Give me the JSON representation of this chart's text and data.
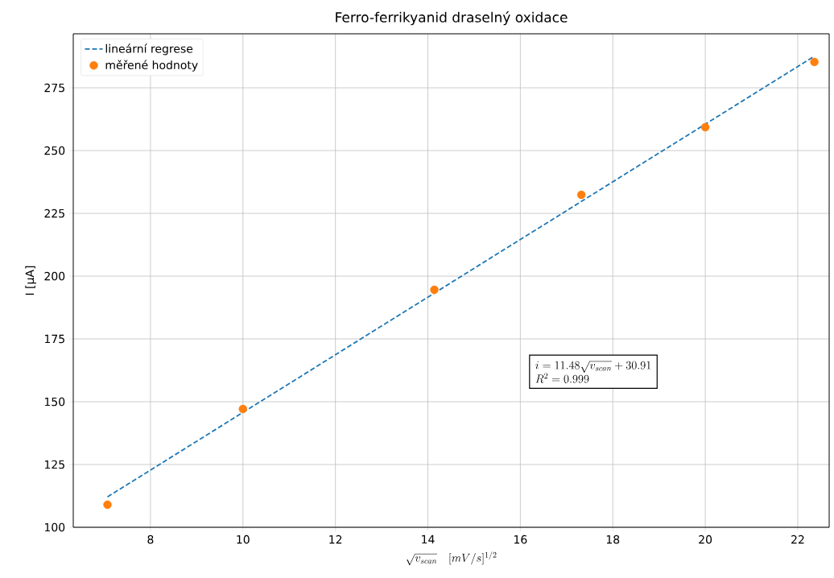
{
  "chart_data": {
    "type": "scatter",
    "title": "Ferro-ferrikyanid draselný oxidace",
    "xlabel": "\\sqrt{v_{scan}}\\quad [mV/s]^{1/2}",
    "ylabel": "I [µA]",
    "xlim": [
      6.33,
      22.68
    ],
    "ylim": [
      100,
      296.5
    ],
    "xticks": [
      8,
      10,
      12,
      14,
      16,
      18,
      20,
      22
    ],
    "yticks": [
      100,
      125,
      150,
      175,
      200,
      225,
      250,
      275
    ],
    "grid": true,
    "legend": "top left",
    "series": [
      {
        "name": "lineární regrese",
        "type": "line",
        "color": "#1f77b4",
        "line_style": "dashed",
        "x": [
          7.07,
          22.36
        ],
        "values": [
          112.1,
          287.6
        ]
      },
      {
        "name": "měřené hodnoty",
        "color": "#ff7f0e",
        "marker": "circle",
        "x": [
          7.07,
          10,
          14.14,
          17.32,
          20,
          22.36
        ],
        "values": [
          109,
          147.1,
          194.6,
          232.4,
          259.3,
          285.3
        ]
      }
    ],
    "annotations": [
      "i=11.48 \\sqrt{v_{scan}} + 30.91",
      "R^2=0.999"
    ]
  }
}
